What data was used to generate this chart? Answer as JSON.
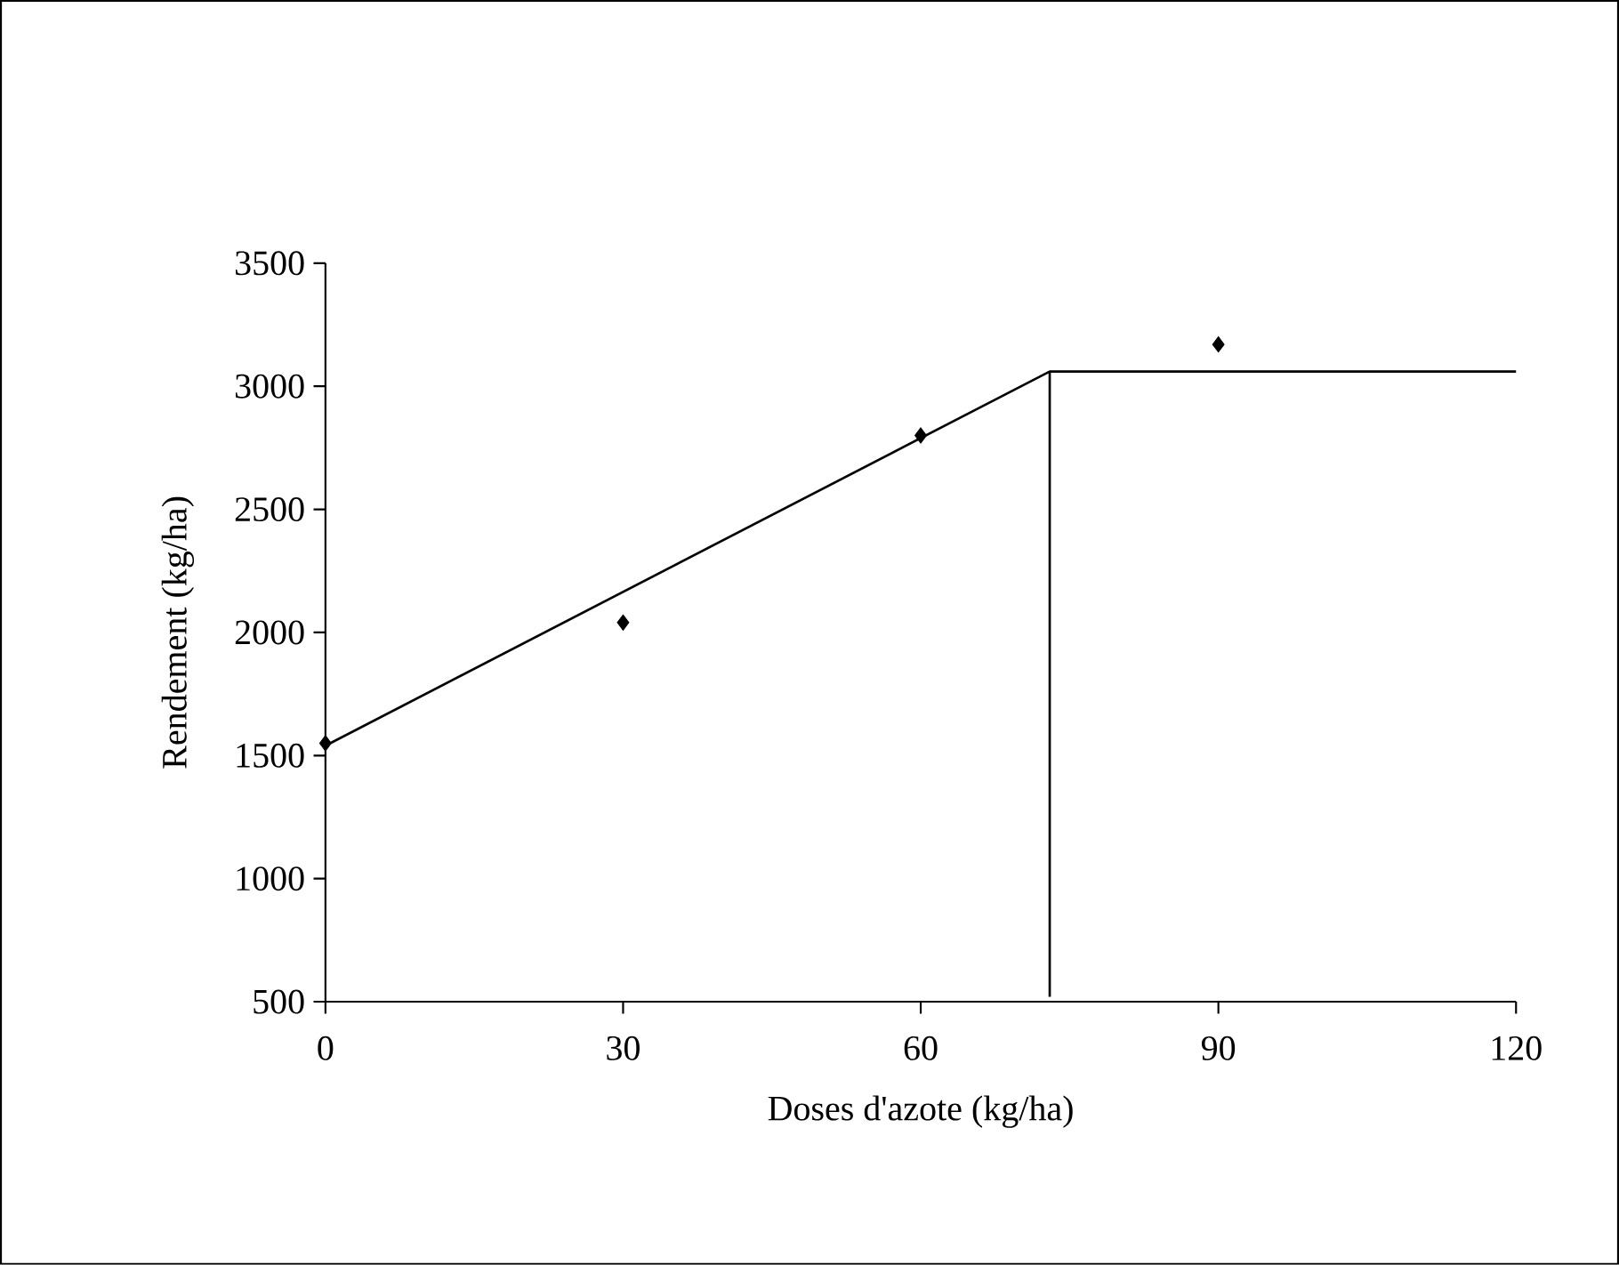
{
  "chart_data": {
    "type": "scatter",
    "xlabel": "Doses d'azote (kg/ha)",
    "ylabel": "Rendement (kg/ha)",
    "xlim": [
      0,
      120
    ],
    "ylim": [
      500,
      3500
    ],
    "xticks": [
      0,
      30,
      60,
      90,
      120
    ],
    "yticks": [
      500,
      1000,
      1500,
      2000,
      2500,
      3000,
      3500
    ],
    "grid": false,
    "marker": "diamond",
    "series": [
      {
        "color": "#000000",
        "x": [
          0,
          30,
          60,
          90
        ],
        "values": [
          1550,
          2040,
          2800,
          3170
        ]
      },
      {
        "type": "line",
        "color": "#000000",
        "marker": "none",
        "x": [
          0,
          73,
          120
        ],
        "values": [
          1540,
          3060,
          3060
        ]
      },
      {
        "type": "line",
        "color": "#000000",
        "marker": "none",
        "x": [
          73,
          73
        ],
        "values": [
          520,
          3060
        ]
      }
    ]
  }
}
